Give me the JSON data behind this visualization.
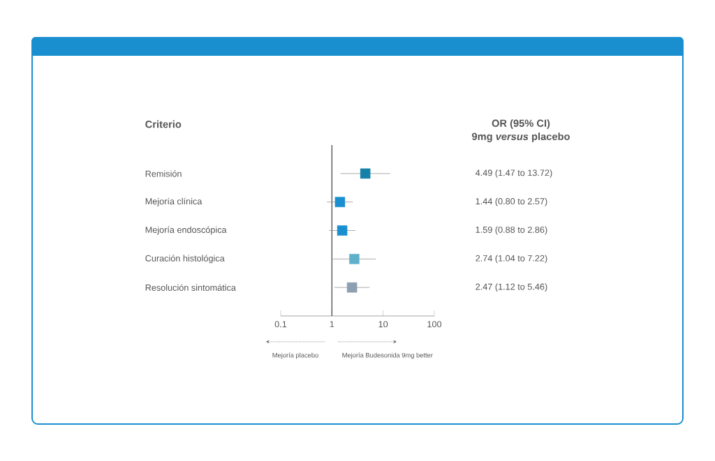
{
  "chart_data": {
    "type": "scatter",
    "orientation": "horizontal",
    "categories": [
      "Remisión",
      "Mejoría clínica",
      "Mejoría endoscópica",
      "Curación histológica",
      "Resolución sintomática"
    ],
    "values": [
      4.49,
      1.44,
      1.59,
      2.74,
      2.47
    ],
    "errors": [
      [
        1.47,
        13.72
      ],
      [
        0.8,
        2.57
      ],
      [
        0.88,
        2.86
      ],
      [
        1.04,
        7.22
      ],
      [
        1.12,
        5.46
      ]
    ],
    "colors": [
      "#1580a8",
      "#1a8fd0",
      "#1a8fd0",
      "#5fb1cb",
      "#8d9fb1"
    ],
    "log": "x",
    "xlim": [
      0.1,
      100
    ],
    "xticks": [
      0.1,
      1,
      10,
      100
    ],
    "marker": "square",
    "grid": false,
    "ref_lines": [
      {
        "axis": "x",
        "value": 1,
        "color": "#222222"
      }
    ],
    "annotations": [
      "Criterio",
      "OR (95% CI)",
      "9mg *versus* placebo",
      "Mejoría placebo",
      "Mejoría Budesonida 9mg better",
      "4.49 (1.47 to 13.72)",
      "1.44 (0.80 to 2.57)",
      "1.59 (0.88 to 2.86)",
      "2.74 (1.04 to 7.22)",
      "2.47 (1.12 to 5.46)"
    ]
  }
}
